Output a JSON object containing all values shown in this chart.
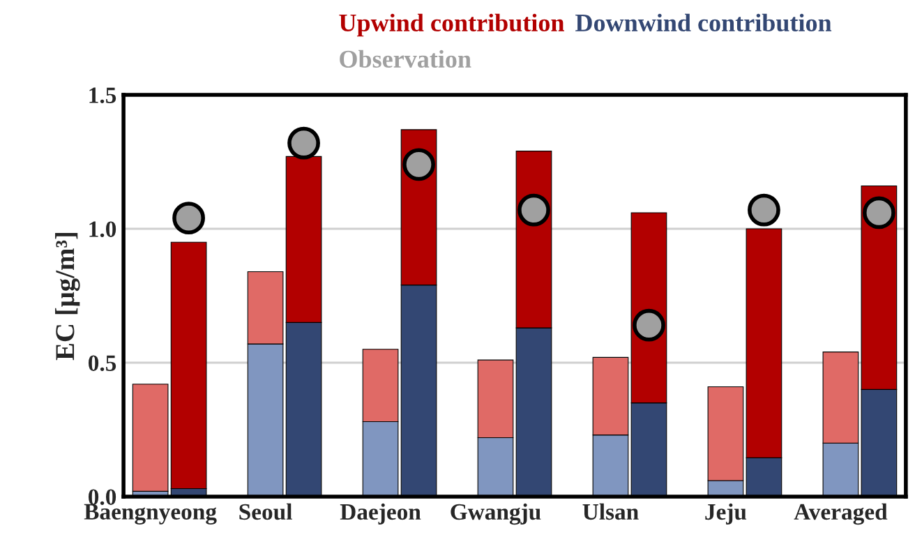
{
  "chart_data": {
    "type": "bar",
    "stacked": true,
    "categories": [
      "Baengnyeong",
      null,
      null,
      "Seoul",
      null,
      null,
      "Daejeon",
      null,
      null,
      "Gwangju",
      null,
      null,
      "Ulsan",
      null,
      null,
      "Jeju",
      null,
      null,
      "Averaged",
      null
    ],
    "ylabel": "EC [μg/m³]",
    "ylim": [
      0,
      1.5
    ],
    "yticks": [
      {
        "value": 0,
        "label": "0.0"
      },
      {
        "value": 0.5,
        "label": "0.5"
      },
      {
        "value": 1.0,
        "label": "1.0"
      },
      {
        "value": 1.5,
        "label": "1.5"
      }
    ],
    "grid": "y",
    "series": [
      {
        "color": "#8096c0",
        "values": [
          0.02,
          null,
          null,
          0.57,
          null,
          null,
          0.28,
          null,
          null,
          0.22,
          null,
          null,
          0.23,
          null,
          null,
          0.06,
          null,
          null,
          0.2,
          null
        ]
      },
      {
        "color": "#e06a66",
        "values": [
          0.4,
          null,
          null,
          0.27,
          null,
          null,
          0.27,
          null,
          null,
          0.29,
          null,
          null,
          0.29,
          null,
          null,
          0.35,
          null,
          null,
          0.34,
          null
        ]
      },
      {
        "name": "Downwind contribution",
        "color": "#334773",
        "values": [
          null,
          0.03,
          null,
          null,
          0.65,
          null,
          null,
          0.79,
          null,
          null,
          0.63,
          null,
          null,
          0.35,
          null,
          null,
          0.145,
          null,
          null,
          0.4
        ]
      },
      {
        "name": "Upwind contribution",
        "color": "#b20000",
        "values": [
          null,
          0.92,
          null,
          null,
          0.62,
          null,
          null,
          0.58,
          null,
          null,
          0.66,
          null,
          null,
          0.71,
          null,
          null,
          0.855,
          null,
          null,
          0.76
        ]
      },
      {
        "name": "Observation",
        "type": "scatter",
        "marker": "circle",
        "color": "#a0a0a0",
        "values": [
          null,
          1.04,
          null,
          null,
          1.32,
          null,
          null,
          1.24,
          null,
          null,
          1.07,
          null,
          null,
          0.64,
          null,
          null,
          1.07,
          null,
          null,
          1.06
        ]
      }
    ]
  }
}
